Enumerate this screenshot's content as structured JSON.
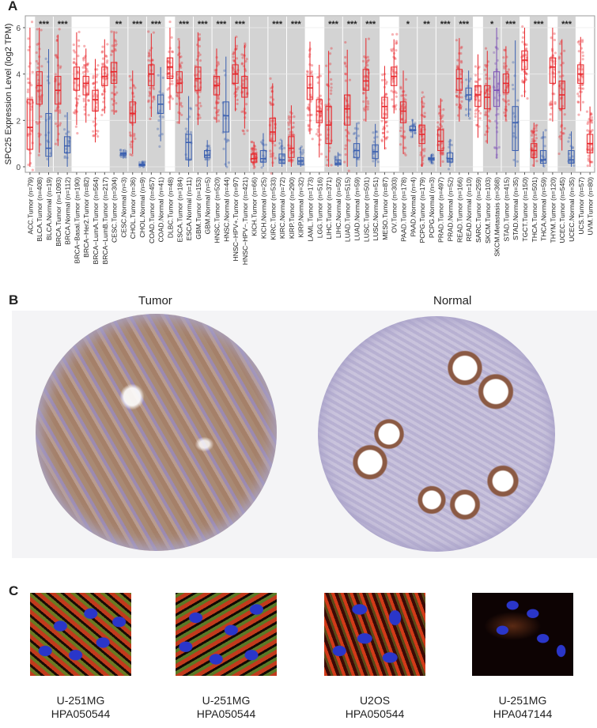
{
  "panels": {
    "A": {
      "letter": "A"
    },
    "B": {
      "letter": "B",
      "left_title": "Tumor",
      "right_title": "Normal"
    },
    "C": {
      "letter": "C"
    }
  },
  "colors": {
    "tumor": "#e8262b",
    "normal": "#3a5fb0",
    "metastasis": "#7b4fb5",
    "sig_band": "#d3d3d3"
  },
  "chart_data": {
    "type": "box",
    "title": "",
    "ylabel": "SPC25 Expression Level (log2 TPM)",
    "xlabel": "",
    "ylim": [
      0,
      6.3
    ],
    "yticks": [
      0,
      2,
      4,
      6
    ],
    "grid": true,
    "categories": [
      "ACC.Tumor (n=79)",
      "BLCA.Tumor (n=408)",
      "BLCA.Normal (n=19)",
      "BRCA.Tumor (n=1093)",
      "BRCA.Normal (n=112)",
      "BRCA−Basal.Tumor (n=190)",
      "BRCA−Her2.Tumor (n=82)",
      "BRCA−LumA.Tumor (n=564)",
      "BRCA−LumB.Tumor (n=217)",
      "CESC.Tumor (n=304)",
      "CESC.Normal (n=3)",
      "CHOL.Tumor (n=36)",
      "CHOL.Normal (n=9)",
      "COAD.Tumor (n=457)",
      "COAD.Normal (n=41)",
      "DLBC.Tumor (n=48)",
      "ESCA.Tumor (n=184)",
      "ESCA.Normal (n=11)",
      "GBM.Tumor (n=153)",
      "GBM.Normal (n=5)",
      "HNSC.Tumor (n=520)",
      "HNSC.Normal (n=44)",
      "HNSC−HPV+.Tumor (n=97)",
      "HNSC−HPV−.Tumor (n=421)",
      "KICH.Tumor (n=66)",
      "KICH.Normal (n=25)",
      "KIRC.Tumor (n=533)",
      "KIRC.Normal (n=72)",
      "KIRP.Tumor (n=290)",
      "KIRP.Normal (n=32)",
      "LAML.Tumor (n=173)",
      "LGG.Tumor (n=516)",
      "LIHC.Tumor (n=371)",
      "LIHC.Normal (n=50)",
      "LUAD.Tumor (n=515)",
      "LUAD.Normal (n=59)",
      "LUSC.Tumor (n=501)",
      "LUSC.Normal (n=51)",
      "MESO.Tumor (n=87)",
      "OV.Tumor (n=303)",
      "PAAD.Tumor (n=178)",
      "PAAD.Normal (n=4)",
      "PCPG.Tumor (n=179)",
      "PCPG.Normal (n=3)",
      "PRAD.Tumor (n=497)",
      "PRAD.Normal (n=52)",
      "READ.Tumor (n=166)",
      "READ.Normal (n=10)",
      "SARC.Tumor (n=259)",
      "SKCM.Tumor (n=103)",
      "SKCM.Metastasis (n=368)",
      "STAD.Tumor (n=415)",
      "STAD.Normal (n=35)",
      "TGCT.Tumor (n=150)",
      "THCA.Tumor (n=501)",
      "THCA.Normal (n=59)",
      "THYM.Tumor (n=120)",
      "UCEC.Tumor (n=545)",
      "UCEC.Normal (n=35)",
      "UCS.Tumor (n=57)",
      "UVM.Tumor (n=80)"
    ],
    "series": [
      {
        "name": "median",
        "values": [
          1.7,
          3.5,
          0.8,
          3.3,
          0.9,
          3.8,
          3.6,
          2.9,
          3.9,
          4.1,
          0.55,
          2.3,
          0.08,
          4.0,
          2.7,
          4.3,
          3.6,
          1.05,
          3.8,
          0.5,
          3.5,
          2.2,
          4.0,
          3.4,
          0.35,
          0.35,
          1.5,
          0.3,
          0.8,
          0.25,
          3.4,
          2.4,
          1.8,
          0.15,
          2.5,
          0.7,
          3.7,
          0.65,
          2.6,
          3.9,
          2.4,
          1.6,
          1.4,
          0.35,
          1.1,
          0.35,
          3.8,
          3.1,
          3.1,
          3.0,
          3.3,
          3.6,
          1.9,
          4.6,
          0.7,
          0.3,
          4.3,
          3.1,
          0.3,
          4.0,
          1.0
        ]
      },
      {
        "name": "q1",
        "values": [
          0.75,
          2.7,
          0.45,
          2.7,
          0.6,
          3.3,
          3.1,
          2.4,
          3.5,
          3.6,
          0.5,
          1.9,
          0.05,
          3.5,
          2.3,
          3.8,
          3.2,
          0.3,
          3.3,
          0.4,
          3.1,
          1.5,
          3.6,
          3.0,
          0.2,
          0.2,
          1.1,
          0.15,
          0.4,
          0.1,
          2.9,
          1.9,
          1.0,
          0.08,
          1.8,
          0.4,
          3.3,
          0.35,
          2.1,
          3.5,
          1.9,
          1.55,
          1.0,
          0.3,
          0.7,
          0.2,
          3.3,
          2.9,
          2.6,
          2.5,
          2.6,
          3.2,
          0.7,
          4.2,
          0.4,
          0.15,
          3.6,
          2.5,
          0.15,
          3.6,
          0.6
        ]
      },
      {
        "name": "q3",
        "values": [
          2.9,
          4.1,
          2.3,
          3.9,
          1.3,
          4.3,
          3.9,
          3.3,
          4.3,
          4.5,
          0.6,
          2.8,
          0.12,
          4.4,
          3.1,
          4.7,
          4.1,
          1.4,
          4.3,
          0.7,
          3.9,
          2.8,
          4.4,
          3.9,
          0.55,
          0.7,
          2.1,
          0.55,
          1.3,
          0.4,
          3.9,
          2.9,
          2.6,
          0.3,
          3.1,
          1.0,
          4.2,
          0.95,
          3.0,
          4.3,
          2.8,
          1.75,
          1.8,
          0.4,
          1.6,
          0.6,
          4.2,
          3.4,
          3.5,
          3.5,
          4.1,
          4.0,
          2.6,
          5.0,
          1.0,
          0.7,
          4.7,
          3.7,
          0.7,
          4.4,
          1.4
        ]
      },
      {
        "name": "group",
        "values": [
          "T",
          "T",
          "N",
          "T",
          "N",
          "T",
          "T",
          "T",
          "T",
          "T",
          "N",
          "T",
          "N",
          "T",
          "N",
          "T",
          "T",
          "N",
          "T",
          "N",
          "T",
          "N",
          "T",
          "T",
          "T",
          "N",
          "T",
          "N",
          "T",
          "N",
          "T",
          "T",
          "T",
          "N",
          "T",
          "N",
          "T",
          "N",
          "T",
          "T",
          "T",
          "N",
          "T",
          "N",
          "T",
          "N",
          "T",
          "N",
          "T",
          "T",
          "M",
          "T",
          "N",
          "T",
          "T",
          "N",
          "T",
          "T",
          "N",
          "T",
          "T"
        ]
      }
    ],
    "significance_bands": [
      {
        "cats": [
          "BLCA.Tumor (n=408)",
          "BLCA.Normal (n=19)"
        ],
        "label": "***"
      },
      {
        "cats": [
          "BRCA.Tumor (n=1093)",
          "BRCA.Normal (n=112)"
        ],
        "label": "***"
      },
      {
        "cats": [
          "CESC.Tumor (n=304)",
          "CESC.Normal (n=3)"
        ],
        "label": "**"
      },
      {
        "cats": [
          "CHOL.Tumor (n=36)",
          "CHOL.Normal (n=9)"
        ],
        "label": "***"
      },
      {
        "cats": [
          "COAD.Tumor (n=457)",
          "COAD.Normal (n=41)"
        ],
        "label": "***"
      },
      {
        "cats": [
          "ESCA.Tumor (n=184)",
          "ESCA.Normal (n=11)"
        ],
        "label": "***"
      },
      {
        "cats": [
          "GBM.Tumor (n=153)",
          "GBM.Normal (n=5)"
        ],
        "label": "***"
      },
      {
        "cats": [
          "HNSC.Tumor (n=520)",
          "HNSC.Normal (n=44)"
        ],
        "label": "***"
      },
      {
        "cats": [
          "HNSC−HPV+.Tumor (n=97)",
          "HNSC−HPV−.Tumor (n=421)"
        ],
        "label": "***"
      },
      {
        "cats": [
          "KICH.Tumor (n=66)",
          "KICH.Normal (n=25)"
        ],
        "label": ""
      },
      {
        "cats": [
          "KIRC.Tumor (n=533)",
          "KIRC.Normal (n=72)"
        ],
        "label": "***"
      },
      {
        "cats": [
          "KIRP.Tumor (n=290)",
          "KIRP.Normal (n=32)"
        ],
        "label": "***"
      },
      {
        "cats": [
          "LIHC.Tumor (n=371)",
          "LIHC.Normal (n=50)"
        ],
        "label": "***"
      },
      {
        "cats": [
          "LUAD.Tumor (n=515)",
          "LUAD.Normal (n=59)"
        ],
        "label": "***"
      },
      {
        "cats": [
          "LUSC.Tumor (n=501)",
          "LUSC.Normal (n=51)"
        ],
        "label": "***"
      },
      {
        "cats": [
          "PAAD.Tumor (n=178)",
          "PAAD.Normal (n=4)"
        ],
        "label": "*"
      },
      {
        "cats": [
          "PCPG.Tumor (n=179)",
          "PCPG.Normal (n=3)"
        ],
        "label": "**"
      },
      {
        "cats": [
          "PRAD.Tumor (n=497)",
          "PRAD.Normal (n=52)"
        ],
        "label": "***"
      },
      {
        "cats": [
          "READ.Tumor (n=166)",
          "READ.Normal (n=10)"
        ],
        "label": "***"
      },
      {
        "cats": [
          "SKCM.Tumor (n=103)",
          "SKCM.Metastasis (n=368)"
        ],
        "label": "*"
      },
      {
        "cats": [
          "STAD.Tumor (n=415)",
          "STAD.Normal (n=35)"
        ],
        "label": "***"
      },
      {
        "cats": [
          "THCA.Tumor (n=501)",
          "THCA.Normal (n=59)"
        ],
        "label": "***"
      },
      {
        "cats": [
          "UCEC.Tumor (n=545)",
          "UCEC.Normal (n=35)"
        ],
        "label": "***"
      }
    ]
  },
  "if_images": [
    {
      "cell_line": "U-251MG",
      "antibody": "HPA050544"
    },
    {
      "cell_line": "U-251MG",
      "antibody": "HPA050544"
    },
    {
      "cell_line": "U2OS",
      "antibody": "HPA050544"
    },
    {
      "cell_line": "U-251MG",
      "antibody": "HPA047144"
    }
  ]
}
